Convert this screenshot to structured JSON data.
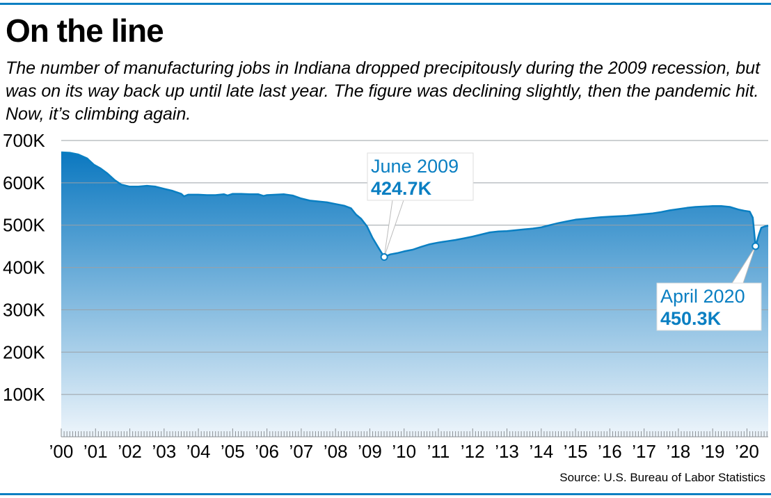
{
  "title": "On the line",
  "subtitle": "The number of manufacturing jobs in Indiana dropped precipitously during the 2009 recession, but was on its way back up until late last year. The figure was declining slightly, then the pandemic hit. Now, it’s climbing again.",
  "source": "Source: U.S. Bureau of Labor Statistics",
  "colors": {
    "accent": "#0a7fc2",
    "area_top": "#0b78c0",
    "area_bottom": "#eef5fb",
    "grid": "#9aa0a6"
  },
  "chart_data": {
    "type": "area",
    "title": "On the line",
    "xlabel": "",
    "ylabel": "",
    "ylim": [
      0,
      700000
    ],
    "yticks": [
      100000,
      200000,
      300000,
      400000,
      500000,
      600000,
      700000
    ],
    "ytick_labels": [
      "100K",
      "200K",
      "300K",
      "400K",
      "500K",
      "600K",
      "700K"
    ],
    "xticks": [
      2000,
      2001,
      2002,
      2003,
      2004,
      2005,
      2006,
      2007,
      2008,
      2009,
      2010,
      2011,
      2012,
      2013,
      2014,
      2015,
      2016,
      2017,
      2018,
      2019,
      2020
    ],
    "xtick_labels": [
      "’00",
      "’01",
      "’02",
      "’03",
      "’04",
      "’05",
      "’06",
      "’07",
      "’08",
      "’09",
      "’10",
      "’11",
      "’12",
      "’13",
      "’14",
      "’15",
      "’16",
      "’17",
      "’18",
      "’19",
      "’20"
    ],
    "xlim": [
      2000.0,
      2020.62
    ],
    "grid": true,
    "series": [
      {
        "name": "",
        "points": [
          [
            2000.0,
            672000
          ],
          [
            2000.25,
            671000
          ],
          [
            2000.5,
            667000
          ],
          [
            2000.75,
            658000
          ],
          [
            2000.95,
            643000
          ],
          [
            2001.15,
            634000
          ],
          [
            2001.35,
            622000
          ],
          [
            2001.55,
            607000
          ],
          [
            2001.75,
            596000
          ],
          [
            2002.0,
            591000
          ],
          [
            2002.25,
            591000
          ],
          [
            2002.5,
            593000
          ],
          [
            2002.75,
            591000
          ],
          [
            2003.0,
            586000
          ],
          [
            2003.25,
            581000
          ],
          [
            2003.5,
            574000
          ],
          [
            2003.58,
            568000
          ],
          [
            2003.7,
            572000
          ],
          [
            2004.0,
            572000
          ],
          [
            2004.25,
            571000
          ],
          [
            2004.5,
            571000
          ],
          [
            2004.75,
            573000
          ],
          [
            2004.85,
            570000
          ],
          [
            2005.0,
            574000
          ],
          [
            2005.25,
            574000
          ],
          [
            2005.5,
            573000
          ],
          [
            2005.75,
            573000
          ],
          [
            2005.9,
            569000
          ],
          [
            2006.0,
            571000
          ],
          [
            2006.25,
            572000
          ],
          [
            2006.5,
            573000
          ],
          [
            2006.75,
            570000
          ],
          [
            2007.0,
            563000
          ],
          [
            2007.25,
            558000
          ],
          [
            2007.5,
            556000
          ],
          [
            2007.75,
            554000
          ],
          [
            2008.0,
            550000
          ],
          [
            2008.25,
            546000
          ],
          [
            2008.45,
            540000
          ],
          [
            2008.6,
            525000
          ],
          [
            2008.75,
            515000
          ],
          [
            2008.92,
            497000
          ],
          [
            2009.08,
            470000
          ],
          [
            2009.25,
            447000
          ],
          [
            2009.42,
            424700
          ],
          [
            2009.6,
            431000
          ],
          [
            2009.8,
            434000
          ],
          [
            2010.0,
            438000
          ],
          [
            2010.25,
            442000
          ],
          [
            2010.5,
            449000
          ],
          [
            2010.75,
            455000
          ],
          [
            2011.0,
            459000
          ],
          [
            2011.25,
            462000
          ],
          [
            2011.5,
            465000
          ],
          [
            2011.75,
            469000
          ],
          [
            2012.0,
            473000
          ],
          [
            2012.25,
            478000
          ],
          [
            2012.5,
            483000
          ],
          [
            2012.75,
            485000
          ],
          [
            2013.0,
            486000
          ],
          [
            2013.25,
            488000
          ],
          [
            2013.5,
            490000
          ],
          [
            2013.75,
            492000
          ],
          [
            2014.0,
            495000
          ],
          [
            2014.25,
            500000
          ],
          [
            2014.5,
            505000
          ],
          [
            2014.75,
            509000
          ],
          [
            2015.0,
            513000
          ],
          [
            2015.25,
            515000
          ],
          [
            2015.5,
            517000
          ],
          [
            2015.75,
            519000
          ],
          [
            2016.0,
            520000
          ],
          [
            2016.25,
            521000
          ],
          [
            2016.5,
            522000
          ],
          [
            2016.75,
            524000
          ],
          [
            2017.0,
            526000
          ],
          [
            2017.25,
            528000
          ],
          [
            2017.5,
            531000
          ],
          [
            2017.75,
            535000
          ],
          [
            2018.0,
            538000
          ],
          [
            2018.25,
            541000
          ],
          [
            2018.5,
            543000
          ],
          [
            2018.75,
            544000
          ],
          [
            2019.0,
            545000
          ],
          [
            2019.25,
            545000
          ],
          [
            2019.5,
            543000
          ],
          [
            2019.75,
            537000
          ],
          [
            2019.92,
            534000
          ],
          [
            2020.08,
            532000
          ],
          [
            2020.17,
            518000
          ],
          [
            2020.25,
            450300
          ],
          [
            2020.35,
            478000
          ],
          [
            2020.42,
            494000
          ],
          [
            2020.52,
            497000
          ],
          [
            2020.62,
            499000
          ]
        ]
      }
    ],
    "annotations": [
      {
        "x": 2009.42,
        "y": 424700,
        "label": "June 2009",
        "value": "424.7K"
      },
      {
        "x": 2020.25,
        "y": 450300,
        "label": "April 2020",
        "value": "450.3K"
      }
    ]
  }
}
